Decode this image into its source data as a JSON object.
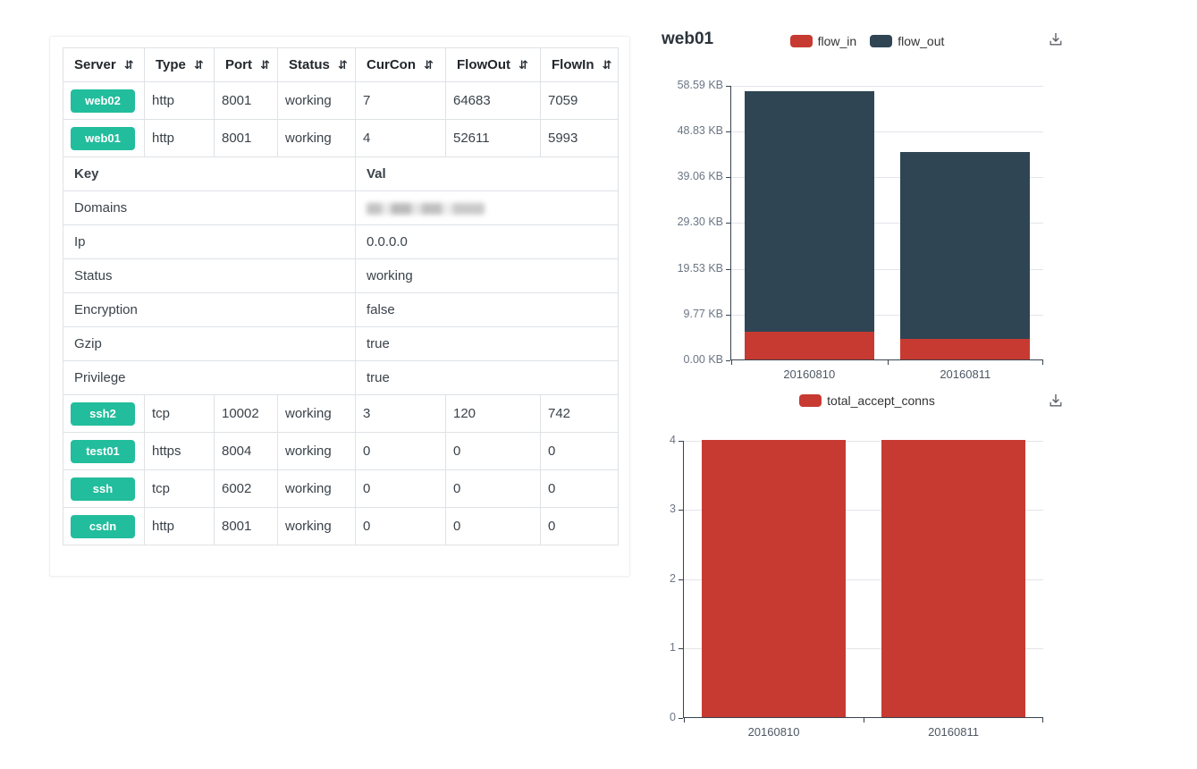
{
  "colors": {
    "badge_green": "#22bd9c",
    "chart_red": "#c73a32",
    "chart_dark": "#2f4554",
    "table_border": "#dee2e6",
    "axis_line": "#39424c",
    "gridline": "#e2e5ea"
  },
  "icons": {
    "sort_glyph": "⇵",
    "download": "save-as-image-arrow"
  },
  "server_table": {
    "columns": [
      "Server",
      "Type",
      "Port",
      "Status",
      "CurCon",
      "FlowOut",
      "FlowIn"
    ],
    "top_rows": [
      {
        "server": "web02",
        "type": "http",
        "port": "8001",
        "status": "working",
        "curcon": "7",
        "flowout": "64683",
        "flowin": "7059"
      },
      {
        "server": "web01",
        "type": "http",
        "port": "8001",
        "status": "working",
        "curcon": "4",
        "flowout": "52611",
        "flowin": "5993"
      }
    ],
    "detail": {
      "key_header": "Key",
      "val_header": "Val",
      "rows": [
        {
          "key": "Domains",
          "val": "",
          "redacted": true
        },
        {
          "key": "Ip",
          "val": "0.0.0.0"
        },
        {
          "key": "Status",
          "val": "working"
        },
        {
          "key": "Encryption",
          "val": "false"
        },
        {
          "key": "Gzip",
          "val": "true"
        },
        {
          "key": "Privilege",
          "val": "true"
        }
      ]
    },
    "bottom_rows": [
      {
        "server": "ssh2",
        "type": "tcp",
        "port": "10002",
        "status": "working",
        "curcon": "3",
        "flowout": "120",
        "flowin": "742"
      },
      {
        "server": "test01",
        "type": "https",
        "port": "8004",
        "status": "working",
        "curcon": "0",
        "flowout": "0",
        "flowin": "0"
      },
      {
        "server": "ssh",
        "type": "tcp",
        "port": "6002",
        "status": "working",
        "curcon": "0",
        "flowout": "0",
        "flowin": "0"
      },
      {
        "server": "csdn",
        "type": "http",
        "port": "8001",
        "status": "working",
        "curcon": "0",
        "flowout": "0",
        "flowin": "0"
      }
    ]
  },
  "chart_data": [
    {
      "type": "bar",
      "stacked": true,
      "title": "web01",
      "categories": [
        "20160810",
        "20160811"
      ],
      "series": [
        {
          "name": "flow_in",
          "color": "#c73a32",
          "values": [
            5993,
            4500
          ]
        },
        {
          "name": "flow_out",
          "color": "#2f4554",
          "values": [
            52611,
            40800
          ]
        }
      ],
      "ylim": [
        0,
        60000
      ],
      "y_ticks": [
        "0.00 KB",
        "9.77 KB",
        "19.53 KB",
        "29.30 KB",
        "39.06 KB",
        "48.83 KB",
        "58.59 KB"
      ],
      "xlabel": "",
      "ylabel": "",
      "legend_position": "top-center",
      "grid": true
    },
    {
      "type": "bar",
      "stacked": false,
      "title": "",
      "categories": [
        "20160810",
        "20160811"
      ],
      "series": [
        {
          "name": "total_accept_conns",
          "color": "#c73a32",
          "values": [
            4,
            4
          ]
        }
      ],
      "ylim": [
        0,
        4
      ],
      "y_ticks": [
        "0",
        "1",
        "2",
        "3",
        "4"
      ],
      "xlabel": "",
      "ylabel": "",
      "legend_position": "top-center",
      "grid": true
    }
  ]
}
